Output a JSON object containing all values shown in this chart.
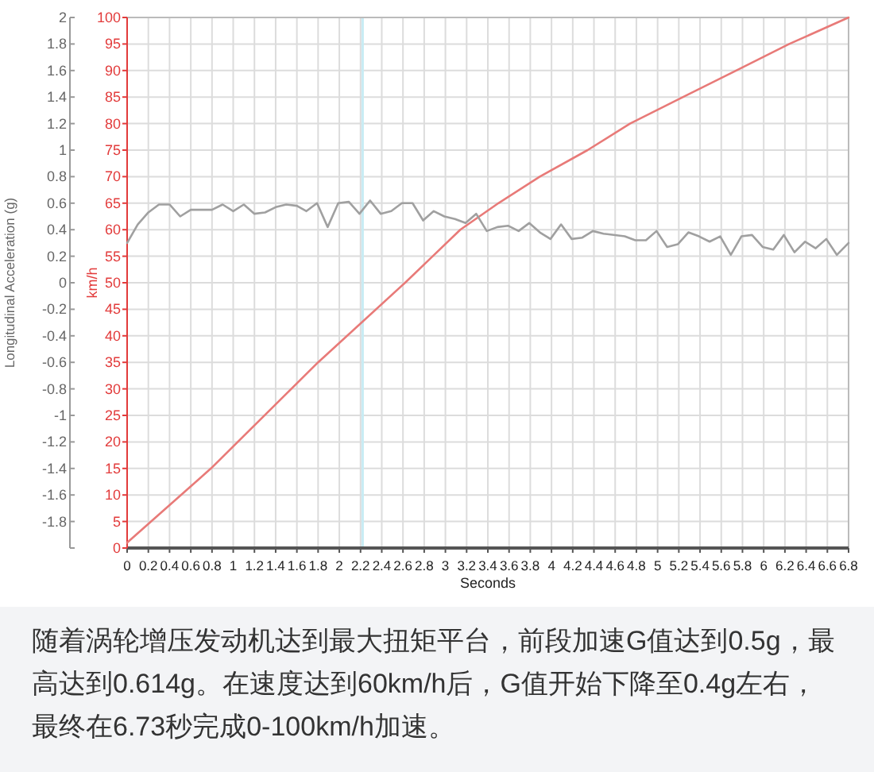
{
  "chart_data": {
    "type": "line",
    "xlabel": "Seconds",
    "ylabel": "km/h",
    "y2label": "Longitudinal Acceleration (g)",
    "xlim": [
      0,
      6.8
    ],
    "xticks": [
      0,
      0.2,
      0.4,
      0.6,
      0.8,
      1,
      1.2,
      1.4,
      1.6,
      1.8,
      2,
      2.2,
      2.4,
      2.6,
      2.8,
      3,
      3.2,
      3.4,
      3.6,
      3.8,
      4,
      4.2,
      4.4,
      4.6,
      4.8,
      5,
      5.2,
      5.4,
      5.6,
      5.8,
      6,
      6.2,
      6.4,
      6.6,
      6.8
    ],
    "ylim": [
      0,
      100
    ],
    "yticks": [
      0,
      5,
      10,
      15,
      20,
      25,
      30,
      35,
      40,
      45,
      50,
      55,
      60,
      65,
      70,
      75,
      80,
      85,
      90,
      95,
      100
    ],
    "y2lim": [
      -2,
      2
    ],
    "y2ticks": [
      {
        "value": -2,
        "label": null
      },
      -1.8,
      -1.6,
      -1.4,
      -1.2,
      -1,
      -0.8,
      -0.6,
      -0.4,
      -0.2,
      0,
      0.2,
      0.4,
      0.6,
      0.8,
      1,
      1.2,
      1.4,
      1.6,
      1.8,
      2
    ],
    "grid": true,
    "series": [
      {
        "color": "#e87a78",
        "x": [
          0,
          0.79,
          1.8,
          2.62,
          2.88,
          3.14,
          3.5,
          3.89,
          4.34,
          4.74,
          5.24,
          5.74,
          6.24,
          6.8
        ],
        "values": [
          1,
          15,
          35,
          50,
          55,
          60,
          65,
          70,
          75,
          80,
          85,
          90,
          95,
          100
        ]
      },
      {
        "color": "#a0a0a0",
        "axis": "y2",
        "x": [
          0,
          0.1,
          0.2,
          0.3,
          0.4,
          0.5,
          0.6,
          0.8,
          0.9,
          1.0,
          1.1,
          1.2,
          1.3,
          1.4,
          1.5,
          1.6,
          1.69,
          1.79,
          1.89,
          1.99,
          2.09,
          2.19,
          2.29,
          2.39,
          2.49,
          2.59,
          2.69,
          2.79,
          2.89,
          2.99,
          3.09,
          3.19,
          3.29,
          3.39,
          3.49,
          3.59,
          3.69,
          3.79,
          3.89,
          3.99,
          4.09,
          4.19,
          4.29,
          4.39,
          4.49,
          4.69,
          4.79,
          4.89,
          4.99,
          5.09,
          5.19,
          5.29,
          5.39,
          5.49,
          5.59,
          5.69,
          5.79,
          5.89,
          5.99,
          6.09,
          6.19,
          6.29,
          6.39,
          6.49,
          6.59,
          6.69,
          6.8
        ],
        "values": [
          0.3,
          0.44,
          0.53,
          0.59,
          0.59,
          0.5,
          0.55,
          0.55,
          0.59,
          0.54,
          0.59,
          0.52,
          0.53,
          0.57,
          0.59,
          0.58,
          0.54,
          0.6,
          0.42,
          0.6,
          0.61,
          0.52,
          0.62,
          0.52,
          0.54,
          0.6,
          0.6,
          0.47,
          0.54,
          0.5,
          0.48,
          0.45,
          0.52,
          0.39,
          0.42,
          0.43,
          0.39,
          0.45,
          0.38,
          0.33,
          0.44,
          0.33,
          0.34,
          0.39,
          0.37,
          0.35,
          0.32,
          0.32,
          0.39,
          0.27,
          0.29,
          0.38,
          0.35,
          0.31,
          0.35,
          0.21,
          0.35,
          0.36,
          0.27,
          0.25,
          0.36,
          0.23,
          0.31,
          0.26,
          0.33,
          0.21,
          0.3
        ]
      }
    ],
    "ref_lines": [
      {
        "axis": "x",
        "value": 2.22,
        "color": "#c8ecf4"
      }
    ],
    "annotations": [
      "随着涡轮增压发动机达到最大扭矩平台，前段加速G值达到0.5g，最高达到0.614g。在速度达到60km/h后，G值开始下降至0.4g左右，最终在6.73秒完成0-100km/h加速。"
    ]
  }
}
